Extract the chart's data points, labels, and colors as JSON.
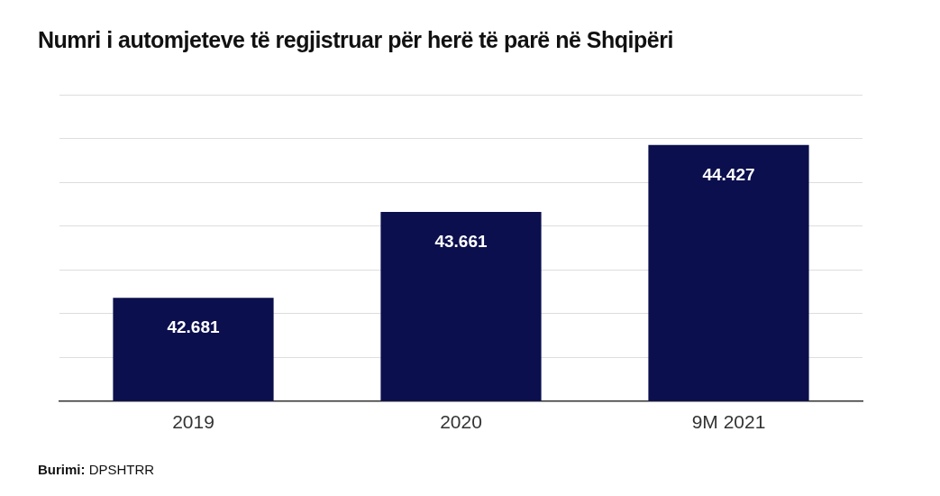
{
  "chart_data": {
    "type": "bar",
    "title": "Numri i automjeteve të regjistruar për herë të parë në Shqipëri",
    "categories": [
      "2019",
      "2020",
      "9M 2021"
    ],
    "values": [
      42.681,
      43.661,
      44.427
    ],
    "color": "#0b0f4d",
    "ylim": [
      41.5,
      45
    ],
    "yticks": [
      {
        "value": 41.5,
        "label": null
      },
      {
        "value": 42,
        "label": null
      },
      {
        "value": 42.5,
        "label": null
      },
      {
        "value": 43,
        "label": null
      },
      {
        "value": 43.5,
        "label": null
      },
      {
        "value": 44,
        "label": null
      },
      {
        "value": 44.5,
        "label": null
      },
      {
        "value": 45,
        "label": null
      }
    ],
    "tick_labels": "x",
    "grid": "y",
    "legend": false,
    "data_labels": true,
    "annotations": [
      "Burimi: DPSHTRR"
    ]
  }
}
